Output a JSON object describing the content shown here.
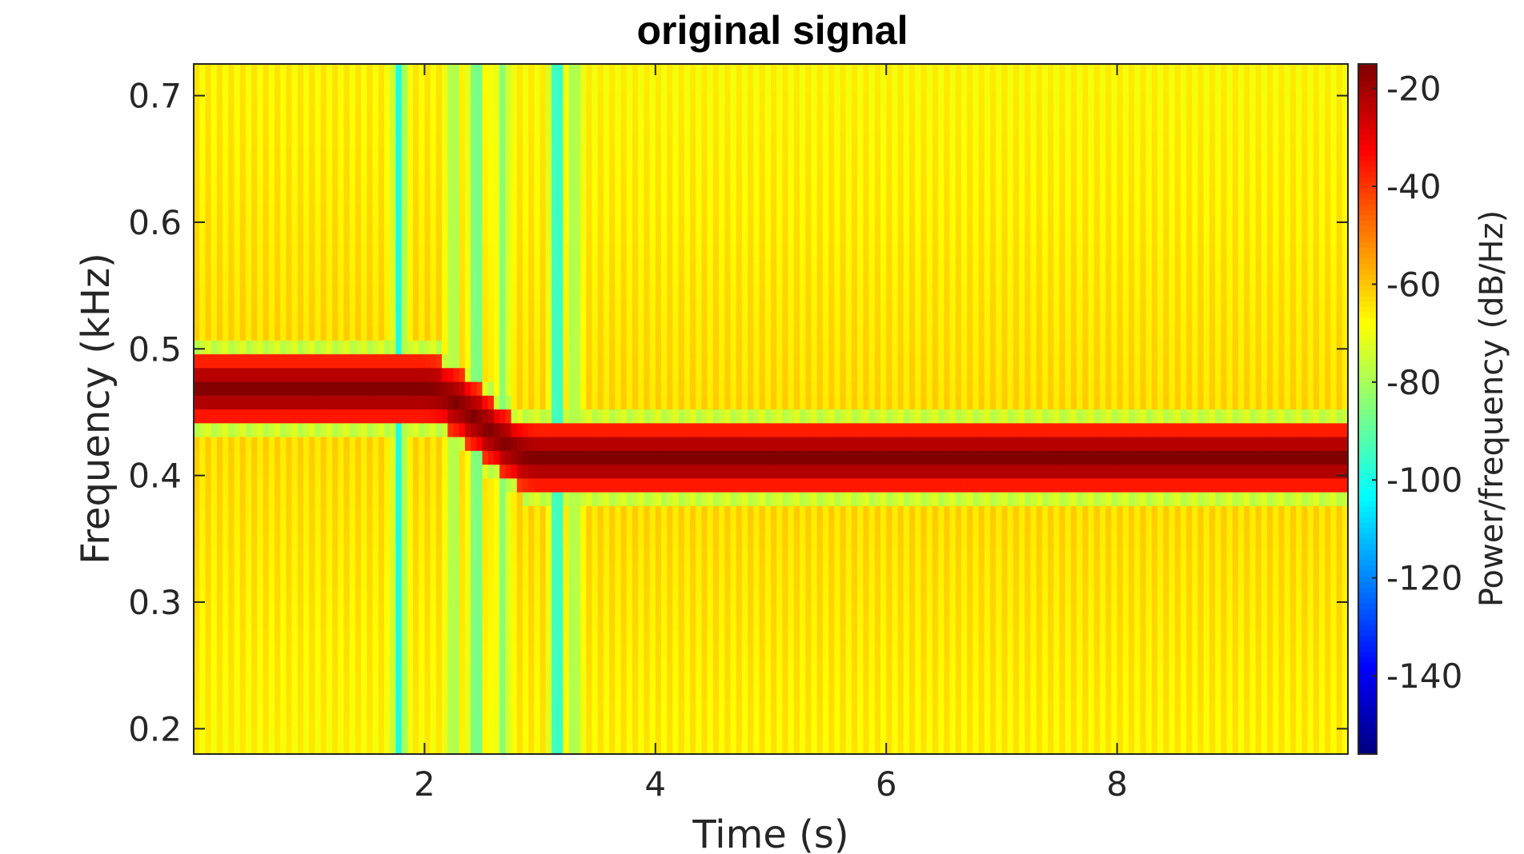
{
  "chart_data": {
    "type": "heatmap",
    "title": "original signal",
    "xlabel": "Time (s)",
    "ylabel": "Frequency (kHz)",
    "colorbar_label": "Power/frequency (dB/Hz)",
    "colormap": "jet",
    "xlim": [
      0.0,
      10.0
    ],
    "ylim": [
      0.18,
      0.725
    ],
    "clim": [
      -156,
      -15
    ],
    "xticks": [
      2,
      4,
      6,
      8
    ],
    "xtick_labels": [
      "2",
      "4",
      "6",
      "8"
    ],
    "yticks": [
      0.2,
      0.3,
      0.4,
      0.5,
      0.6,
      0.7
    ],
    "ytick_labels": [
      "0.2",
      "0.3",
      "0.4",
      "0.5",
      "0.6",
      "0.7"
    ],
    "cticks": [
      -140,
      -120,
      -100,
      -80,
      -60,
      -40,
      -20
    ],
    "ctick_labels": [
      "-140",
      "-120",
      "-100",
      "-80",
      "-60",
      "-40",
      "-20"
    ],
    "grid": false,
    "ridge": {
      "description": "dominant tone",
      "start_time": 0.0,
      "start_freq": 0.468,
      "end_time": 10.0,
      "end_freq": 0.414,
      "transition_start": 2.0,
      "transition_end": 3.0,
      "peak_db": -15
    },
    "background_db": -62,
    "low_power_columns": [
      {
        "t": 1.78,
        "db": -100
      },
      {
        "t": 2.25,
        "db": -82
      },
      {
        "t": 2.45,
        "db": -92
      },
      {
        "t": 2.68,
        "db": -85
      },
      {
        "t": 3.15,
        "db": -103
      },
      {
        "t": 3.3,
        "db": -82
      }
    ]
  }
}
